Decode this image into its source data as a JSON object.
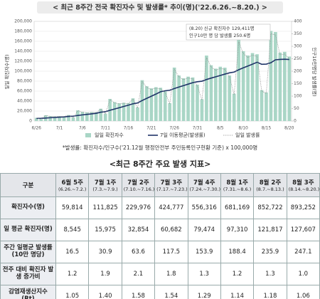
{
  "chart_data": {
    "type": "combo",
    "title": "< 최근 8주간 전국 확진자수 및 발생률* 추이(명)('22.6.26.~8.20.) >",
    "ylabel": "일일 확진자수(명)",
    "y2label": "인구10만명당 발생률(명)",
    "annotations": [
      "(8.20) 신규 확진자수 129,411명",
      "인구10만 명 당 발생률 250.6명"
    ],
    "footnote": "*발생률: 확진자수/인구수('21.12월 행정안전부 주민등록인구현황 기준) x 100,000명",
    "categories": [
      "6/26",
      null,
      null,
      null,
      null,
      "7/1",
      null,
      null,
      null,
      null,
      "7/6",
      null,
      null,
      null,
      null,
      "7/11",
      null,
      null,
      null,
      null,
      "7/16",
      null,
      null,
      null,
      null,
      "7/21",
      null,
      null,
      null,
      null,
      "7/26",
      null,
      null,
      null,
      null,
      "7/31",
      null,
      null,
      null,
      null,
      "8/5",
      null,
      null,
      null,
      null,
      "8/10",
      null,
      null,
      null,
      null,
      "8/15",
      null,
      null,
      null,
      null,
      "8/20"
    ],
    "ylim": [
      0,
      200000
    ],
    "yticks": [
      0,
      {
        "value": 20000,
        "label": "20,000"
      },
      {
        "value": 40000,
        "label": "40,000"
      },
      {
        "value": 60000,
        "label": "60,000"
      },
      {
        "value": 80000,
        "label": "80,000"
      },
      {
        "value": 100000,
        "label": "100,000"
      },
      {
        "value": 120000,
        "label": "120,000"
      },
      {
        "value": 140000,
        "label": "140,000"
      },
      {
        "value": 160000,
        "label": "160,000"
      },
      {
        "value": 180000,
        "label": "180,000"
      },
      {
        "value": 200000,
        "label": "200,000"
      }
    ],
    "y2lim": [
      0,
      400
    ],
    "y2ticks": [
      0,
      50,
      100,
      150,
      200,
      250,
      300,
      350,
      400
    ],
    "grid": true,
    "series": [
      {
        "name": "일일 확진자수",
        "style": "bar",
        "axis": "y",
        "color": "#a9d6c6",
        "values": [
          6409,
          3845,
          11536,
          9827,
          9229,
          9570,
          9400,
          11982,
          7189,
          21566,
          18371,
          17253,
          17892,
          17573,
          24641,
          14784,
          44353,
          37782,
          35482,
          36796,
          36139,
          45512,
          27307,
          81921,
          69784,
          65537,
          67964,
          66750,
          59606,
          35763,
          107290,
          91395,
          85832,
          89011,
          87421,
          72983,
          43790,
          131369,
          111907,
          105095,
          108987,
          107041,
          91363,
          54818,
          164453,
          140090,
          131562,
          136435,
          133999,
          62078,
          57423,
          180803,
          178574,
          137241,
          138812,
          129411
        ]
      },
      {
        "name": "7일 이동평균(발생률)",
        "style": "line",
        "axis": "y2",
        "color": "#1f3468",
        "values": [
          10.5,
          11.0,
          12.0,
          13.2,
          14.3,
          15.4,
          16.5,
          18.4,
          19.6,
          22.3,
          24.6,
          26.6,
          28.7,
          30.9,
          35.6,
          37.2,
          43.1,
          48.3,
          53.3,
          58.6,
          63.6,
          69.2,
          72.5,
          82.3,
          91.1,
          99.6,
          108.1,
          117.5,
          121.4,
          123.6,
          130.5,
          136.5,
          142.2,
          148.0,
          153.9,
          157.6,
          159.9,
          166.6,
          172.3,
          177.6,
          182.9,
          188.4,
          193.4,
          196.4,
          205.7,
          213.5,
          220.8,
          228.2,
          235.9,
          227.8,
          228.5,
          233.9,
          245.7,
          247.2,
          248.0,
          247.1
        ]
      },
      {
        "name": "일일 발생률",
        "style": "dotted",
        "axis": "y2",
        "color": "#888888",
        "values": [
          12.4,
          7.4,
          22.3,
          19.0,
          17.9,
          18.5,
          18.2,
          23.2,
          13.9,
          41.8,
          35.6,
          33.4,
          34.6,
          34.0,
          47.7,
          28.6,
          85.9,
          73.2,
          68.7,
          71.3,
          70.0,
          88.1,
          52.9,
          158.6,
          135.1,
          126.9,
          131.6,
          129.3,
          115.4,
          69.3,
          207.8,
          177.0,
          166.2,
          172.4,
          169.3,
          141.3,
          84.8,
          254.4,
          216.7,
          203.5,
          211.1,
          207.3,
          176.9,
          106.2,
          318.5,
          271.3,
          254.8,
          264.2,
          259.5,
          120.2,
          111.2,
          350.1,
          345.8,
          265.8,
          268.8,
          250.6
        ]
      }
    ]
  },
  "table": {
    "title": "<최근 8주간 주요 발생 지표>",
    "corner": "구분",
    "columns": [
      {
        "week": "6월 5주",
        "range": "(6.26.~7.2.)"
      },
      {
        "week": "7월 1주",
        "range": "(7.3.~7.9.)"
      },
      {
        "week": "7월 2주",
        "range": "(7.10.~7.16.)"
      },
      {
        "week": "7월 3주",
        "range": "(7.17.~7.23.)"
      },
      {
        "week": "7월 4주",
        "range": "(7.24.~7.30.)"
      },
      {
        "week": "8월 1주",
        "range": "(7.31.~8.6.)"
      },
      {
        "week": "8월 2주",
        "range": "(8.7.~8.13.)"
      },
      {
        "week": "8월 3주",
        "range": "(8.14.~8.20.)"
      }
    ],
    "rows": [
      {
        "label": "확진자수(명)",
        "cells": [
          "59,814",
          "111,825",
          "229,976",
          "424,777",
          "556,316",
          "681,169",
          "852,722",
          "893,252"
        ]
      },
      {
        "label": "일 평균 확진자(명)",
        "cells": [
          "8,545",
          "15,975",
          "32,854",
          "60,682",
          "79,474",
          "97,310",
          "121,817",
          "127,607"
        ]
      },
      {
        "label": "주간 일평균 발생률(10만 명당)",
        "cells": [
          "16.5",
          "30.9",
          "63.6",
          "117.5",
          "153.9",
          "188.4",
          "235.9",
          "247.1"
        ]
      },
      {
        "label": "전주 대비 확진자 발생 증가비",
        "cells": [
          "1.2",
          "1.9",
          "2.1",
          "1.8",
          "1.3",
          "1.2",
          "1.3",
          "1.0"
        ]
      },
      {
        "label": "감염재생산지수(Rt)",
        "cells": [
          "1.05",
          "1.40",
          "1.58",
          "1.54",
          "1.29",
          "1.14",
          "1.18",
          "1.06"
        ]
      }
    ]
  }
}
